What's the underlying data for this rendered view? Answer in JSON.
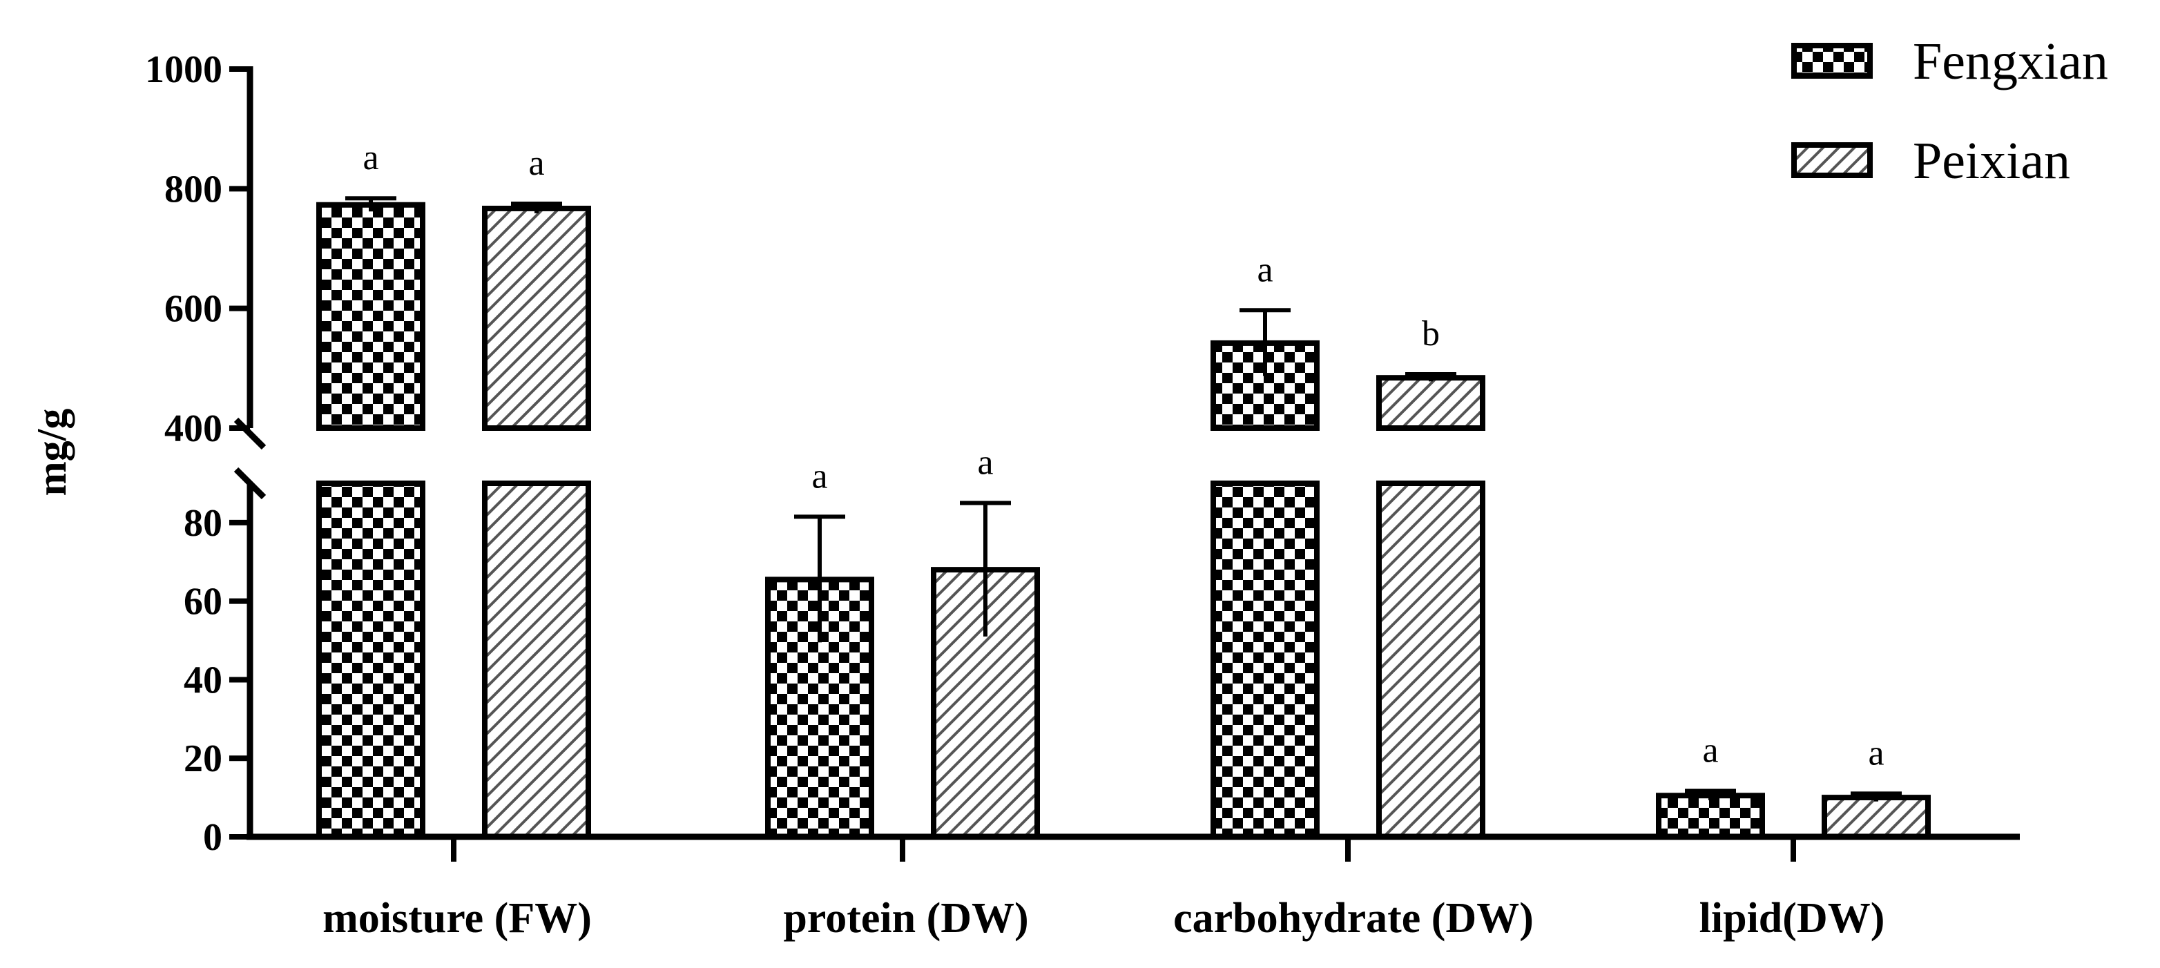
{
  "chart_data": {
    "type": "bar",
    "title": "",
    "xlabel": "",
    "ylabel": "mg/g",
    "categories": [
      "moisture (FW)",
      "protein (DW)",
      "carbohydrate (DW)",
      "lipid(DW)"
    ],
    "series": [
      {
        "name": "Fengxian",
        "pattern": "checker",
        "values": [
          773,
          65.5,
          542,
          10.5
        ],
        "errors": [
          11,
          16,
          55,
          1.2
        ],
        "significance": [
          "a",
          "a",
          "a",
          "a"
        ]
      },
      {
        "name": "Peixian",
        "pattern": "hatch",
        "values": [
          767,
          68,
          484,
          10
        ],
        "errors": [
          8,
          17,
          6,
          1
        ],
        "significance": [
          "a",
          "a",
          "b",
          "a"
        ]
      }
    ],
    "y_axis": {
      "broken": true,
      "lower_range": [
        0,
        90
      ],
      "upper_range": [
        400,
        1000
      ],
      "lower_ticks": [
        0,
        20,
        40,
        60,
        80
      ],
      "upper_ticks": [
        400,
        600,
        800,
        1000
      ]
    },
    "legend_position": "top-right",
    "grid": false
  }
}
